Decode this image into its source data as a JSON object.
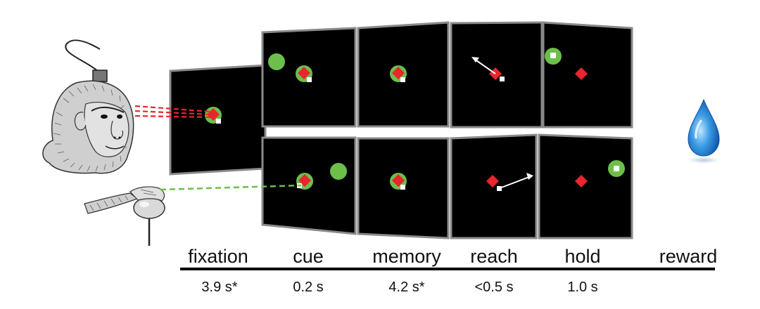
{
  "phases": [
    {
      "label": "fixation",
      "duration": "3.9 s*"
    },
    {
      "label": "cue",
      "duration": "0.2 s"
    },
    {
      "label": "memory",
      "duration": "4.2 s*"
    },
    {
      "label": "reach",
      "duration": "<0.5 s"
    },
    {
      "label": "hold",
      "duration": "1.0 s"
    },
    {
      "label": "reward",
      "duration": ""
    }
  ],
  "colors": {
    "screen": "#000000",
    "screen_border": "#8a8a8a",
    "fixation_target": "#e8262b",
    "cue_target": "#6cbf4b",
    "hand_cursor": "#ffffff",
    "gaze_line": "#e8262b",
    "hand_line": "#6cbf4b",
    "reward_drop": "#1f7fd6"
  },
  "icons": {
    "subject_head": "monkey-head-illustration",
    "subject_hand": "monkey-hand-on-manipulandum",
    "reward": "water-drop-icon"
  }
}
